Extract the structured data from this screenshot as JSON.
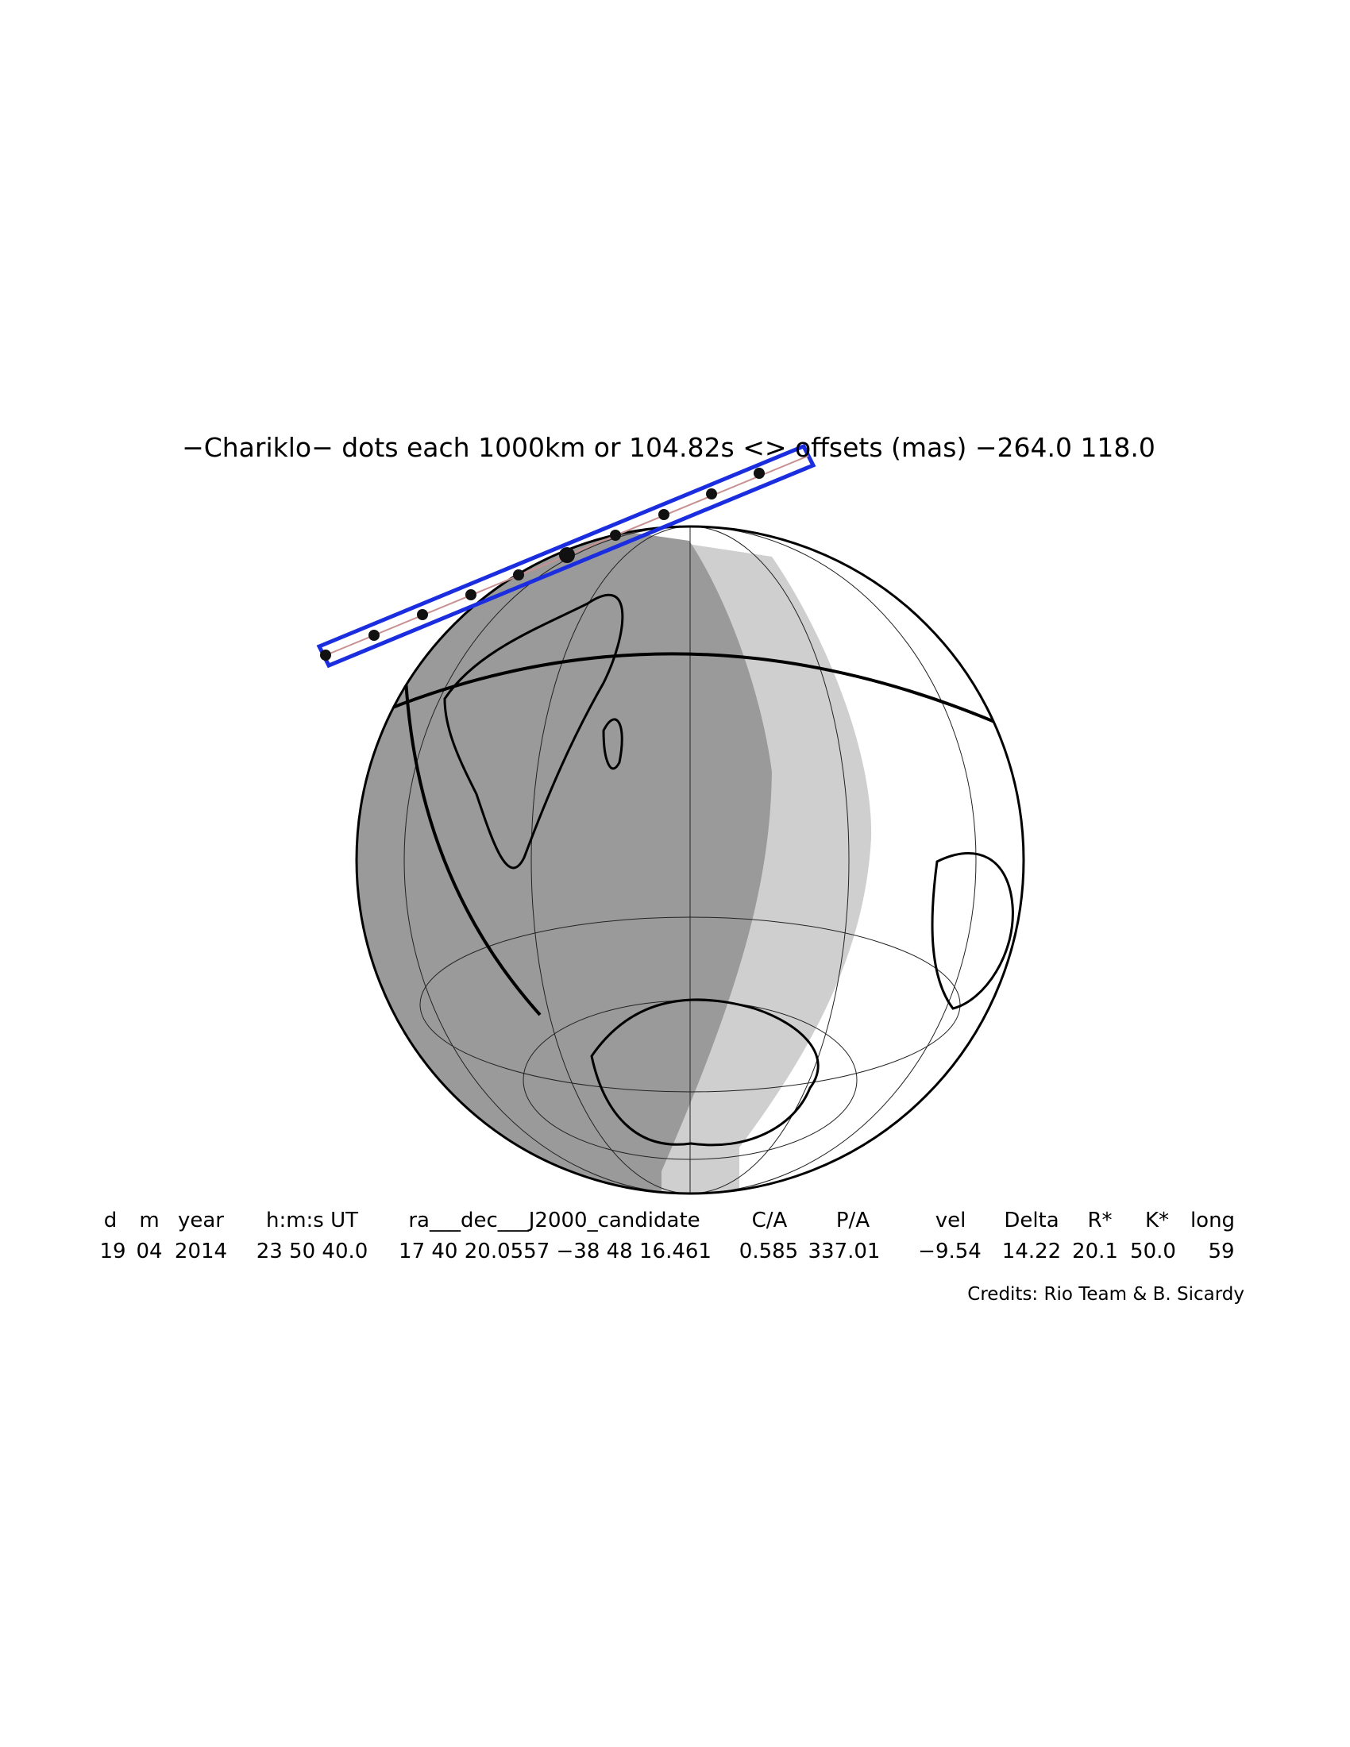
{
  "title": "−Chariklo− dots each 1000km or 104.82s <> offsets (mas) −264.0   118.0",
  "table": {
    "header": [
      "d",
      "m",
      "year",
      "h:m:s UT",
      "ra___dec___J2000_candidate",
      "C/A",
      "P/A",
      "vel",
      "Delta",
      "R*",
      "K*",
      "long"
    ],
    "row": [
      "19",
      "04",
      "2014",
      "23 50 40.0",
      "17 40 20.0557 −38 48 16.461",
      "0.585",
      "337.01",
      "−9.54",
      "14.22",
      "20.1",
      "50.0",
      "59"
    ]
  },
  "credits": "Credits: Rio Team & B. Sicardy"
}
